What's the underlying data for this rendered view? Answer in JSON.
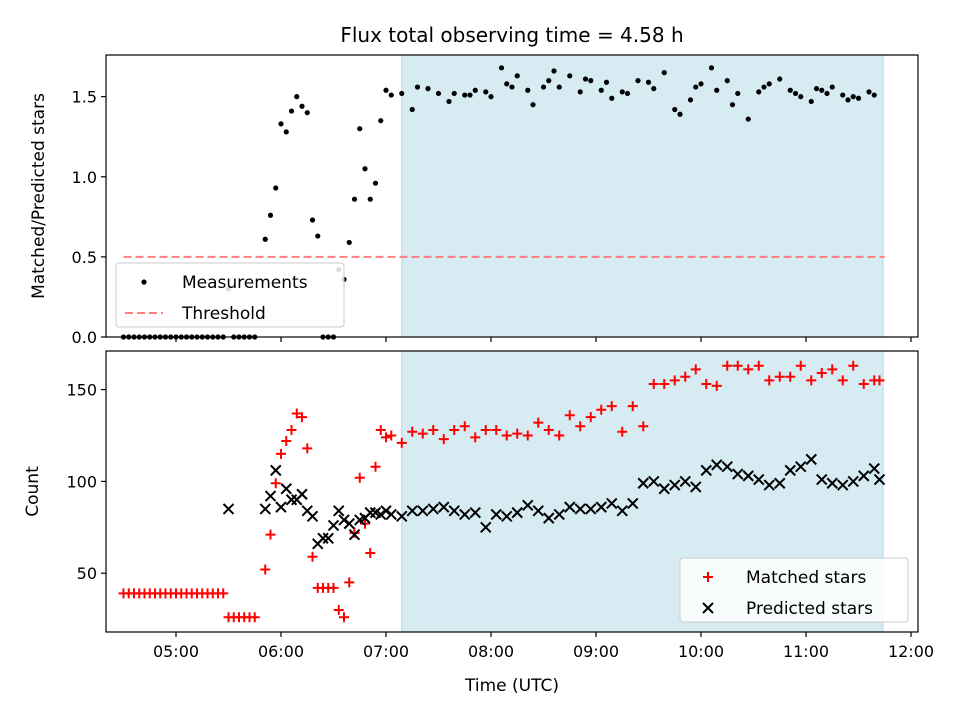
{
  "chart_data": {
    "title": "Flux total observing time = 4.58 h",
    "xlabel": "Time (UTC)",
    "x_ticks": [
      "05:00",
      "06:00",
      "07:00",
      "08:00",
      "09:00",
      "10:00",
      "11:00",
      "12:00"
    ],
    "xlim": [
      "04:20",
      "12:04"
    ],
    "shaded_span": {
      "start": "07:09",
      "end": "11:44",
      "color": "#add8e6"
    },
    "panels": [
      {
        "type": "scatter",
        "ylabel": "Matched/Predicted stars",
        "ylim": [
          0,
          1.76
        ],
        "y_ticks": [
          "0.0",
          "0.5",
          "1.0",
          "1.5"
        ],
        "legend_position": "lower-left",
        "threshold": {
          "name": "Threshold",
          "value": 0.5,
          "start": "04:30",
          "end": "11:45",
          "color": "#ff7f7f",
          "style": "dashed"
        },
        "series": [
          {
            "name": "Measurements",
            "marker": "dot",
            "color": "#000000",
            "x": [
              "04:30",
              "04:33",
              "04:36",
              "04:39",
              "04:42",
              "04:45",
              "04:48",
              "04:51",
              "04:54",
              "04:57",
              "05:00",
              "05:03",
              "05:06",
              "05:09",
              "05:12",
              "05:15",
              "05:18",
              "05:21",
              "05:24",
              "05:27",
              "05:30",
              "05:33",
              "05:36",
              "05:39",
              "05:42",
              "05:45",
              "05:51",
              "05:54",
              "05:57",
              "06:00",
              "06:03",
              "06:06",
              "06:09",
              "06:12",
              "06:15",
              "06:18",
              "06:21",
              "06:24",
              "06:27",
              "06:30",
              "06:33",
              "06:36",
              "06:39",
              "06:42",
              "06:45",
              "06:48",
              "06:51",
              "06:54",
              "06:57",
              "07:00",
              "07:03",
              "07:09",
              "07:15",
              "07:18",
              "07:24",
              "07:30",
              "07:36",
              "07:39",
              "07:45",
              "07:48",
              "07:51",
              "07:57",
              "08:00",
              "08:06",
              "08:09",
              "08:12",
              "08:15",
              "08:21",
              "08:24",
              "08:30",
              "08:33",
              "08:36",
              "08:39",
              "08:45",
              "08:51",
              "08:54",
              "08:57",
              "09:03",
              "09:06",
              "09:09",
              "09:15",
              "09:18",
              "09:24",
              "09:30",
              "09:33",
              "09:39",
              "09:45",
              "09:48",
              "09:54",
              "09:57",
              "10:00",
              "10:06",
              "10:09",
              "10:15",
              "10:18",
              "10:21",
              "10:27",
              "10:33",
              "10:36",
              "10:39",
              "10:45",
              "10:51",
              "10:54",
              "10:57",
              "11:03",
              "11:06",
              "11:09",
              "11:12",
              "11:15",
              "11:21",
              "11:24",
              "11:27",
              "11:30",
              "11:36",
              "11:39"
            ],
            "y": [
              0.0,
              0.0,
              0.0,
              0.0,
              0.0,
              0.0,
              0.0,
              0.0,
              0.0,
              0.0,
              0.0,
              0.0,
              0.0,
              0.0,
              0.0,
              0.0,
              0.0,
              0.0,
              0.0,
              0.0,
              0.3,
              0.0,
              0.0,
              0.0,
              0.0,
              0.0,
              0.61,
              0.76,
              0.93,
              1.33,
              1.28,
              1.41,
              1.5,
              1.44,
              1.4,
              0.73,
              0.63,
              0.0,
              0.0,
              0.0,
              0.42,
              0.36,
              0.59,
              0.86,
              1.3,
              1.05,
              0.86,
              0.96,
              1.35,
              1.54,
              1.51,
              1.52,
              1.42,
              1.56,
              1.55,
              1.52,
              1.47,
              1.52,
              1.51,
              1.51,
              1.54,
              1.53,
              1.5,
              1.68,
              1.58,
              1.56,
              1.63,
              1.54,
              1.45,
              1.56,
              1.6,
              1.66,
              1.56,
              1.63,
              1.53,
              1.61,
              1.6,
              1.54,
              1.59,
              1.49,
              1.53,
              1.52,
              1.6,
              1.59,
              1.55,
              1.65,
              1.42,
              1.39,
              1.48,
              1.56,
              1.58,
              1.68,
              1.54,
              1.6,
              1.45,
              1.52,
              1.36,
              1.53,
              1.56,
              1.58,
              1.61,
              1.54,
              1.52,
              1.5,
              1.47,
              1.55,
              1.54,
              1.52,
              1.56,
              1.51,
              1.48,
              1.5,
              1.49,
              1.53,
              1.51
            ]
          }
        ]
      },
      {
        "type": "scatter",
        "ylabel": "Count",
        "ylim": [
          18,
          171
        ],
        "y_ticks": [
          "50",
          "100",
          "150"
        ],
        "legend_position": "lower-right",
        "series": [
          {
            "name": "Matched stars",
            "marker": "plus",
            "color": "#ff0000",
            "x": [
              "04:30",
              "04:33",
              "04:36",
              "04:39",
              "04:42",
              "04:45",
              "04:48",
              "04:51",
              "04:54",
              "04:57",
              "05:00",
              "05:03",
              "05:06",
              "05:09",
              "05:12",
              "05:15",
              "05:18",
              "05:21",
              "05:24",
              "05:27",
              "05:30",
              "05:33",
              "05:36",
              "05:39",
              "05:42",
              "05:45",
              "05:51",
              "05:54",
              "05:57",
              "06:00",
              "06:03",
              "06:06",
              "06:09",
              "06:12",
              "06:15",
              "06:18",
              "06:21",
              "06:24",
              "06:27",
              "06:30",
              "06:33",
              "06:36",
              "06:39",
              "06:42",
              "06:45",
              "06:48",
              "06:51",
              "06:54",
              "06:57",
              "07:00",
              "07:03",
              "07:09",
              "07:15",
              "07:21",
              "07:27",
              "07:33",
              "07:39",
              "07:45",
              "07:51",
              "07:57",
              "08:03",
              "08:09",
              "08:15",
              "08:21",
              "08:27",
              "08:33",
              "08:39",
              "08:45",
              "08:51",
              "08:57",
              "09:03",
              "09:09",
              "09:15",
              "09:21",
              "09:27",
              "09:33",
              "09:39",
              "09:45",
              "09:51",
              "09:57",
              "10:03",
              "10:09",
              "10:15",
              "10:21",
              "10:27",
              "10:33",
              "10:39",
              "10:45",
              "10:51",
              "10:57",
              "11:03",
              "11:09",
              "11:15",
              "11:21",
              "11:27",
              "11:33",
              "11:39",
              "11:42"
            ],
            "y": [
              39,
              39,
              39,
              39,
              39,
              39,
              39,
              39,
              39,
              39,
              39,
              39,
              39,
              39,
              39,
              39,
              39,
              39,
              39,
              39,
              26,
              26,
              26,
              26,
              26,
              26,
              52,
              71,
              99,
              115,
              122,
              128,
              137,
              135,
              118,
              59,
              42,
              42,
              42,
              42,
              30,
              26,
              45,
              72,
              102,
              77,
              61,
              108,
              128,
              124,
              125,
              121,
              127,
              126,
              128,
              123,
              128,
              130,
              124,
              128,
              128,
              125,
              126,
              125,
              132,
              128,
              125,
              136,
              130,
              135,
              139,
              141,
              127,
              141,
              130,
              153,
              153,
              155,
              157,
              161,
              153,
              152,
              163,
              163,
              161,
              163,
              155,
              157,
              157,
              163,
              155,
              159,
              161,
              155,
              163,
              153,
              155,
              155
            ],
            "shown_x": [
              "04:30",
              "04:33",
              "04:36",
              "04:39",
              "04:42",
              "04:45",
              "04:48",
              "04:51",
              "04:54",
              "04:57",
              "05:00",
              "05:03",
              "05:06",
              "05:09",
              "05:12",
              "05:15",
              "05:18",
              "05:21",
              "05:24",
              "05:27",
              "05:30",
              "05:33",
              "05:36",
              "05:39",
              "05:42",
              "05:45"
            ]
          },
          {
            "name": "Predicted stars",
            "marker": "x",
            "color": "#000000",
            "x": [
              "05:30",
              "05:51",
              "05:54",
              "05:57",
              "06:00",
              "06:03",
              "06:06",
              "06:09",
              "06:12",
              "06:15",
              "06:18",
              "06:21",
              "06:24",
              "06:27",
              "06:30",
              "06:33",
              "06:36",
              "06:39",
              "06:42",
              "06:45",
              "06:48",
              "06:51",
              "06:54",
              "06:57",
              "07:00",
              "07:03",
              "07:09",
              "07:15",
              "07:21",
              "07:27",
              "07:33",
              "07:39",
              "07:45",
              "07:51",
              "07:57",
              "08:03",
              "08:09",
              "08:15",
              "08:21",
              "08:27",
              "08:33",
              "08:39",
              "08:45",
              "08:51",
              "08:57",
              "09:03",
              "09:09",
              "09:15",
              "09:21",
              "09:27",
              "09:33",
              "09:39",
              "09:45",
              "09:51",
              "09:57",
              "10:03",
              "10:09",
              "10:15",
              "10:21",
              "10:27",
              "10:33",
              "10:39",
              "10:45",
              "10:51",
              "10:57",
              "11:03",
              "11:09",
              "11:15",
              "11:21",
              "11:27",
              "11:33",
              "11:39",
              "11:42"
            ],
            "y": [
              85,
              85,
              92,
              106,
              86,
              96,
              90,
              90,
              93,
              84,
              81,
              66,
              69,
              69,
              76,
              84,
              79,
              77,
              71,
              79,
              80,
              83,
              83,
              82,
              84,
              82,
              81,
              84,
              84,
              85,
              86,
              84,
              82,
              83,
              75,
              82,
              81,
              83,
              87,
              84,
              80,
              82,
              86,
              85,
              85,
              86,
              88,
              84,
              88,
              99,
              100,
              96,
              98,
              100,
              97,
              106,
              109,
              108,
              104,
              103,
              101,
              98,
              99,
              106,
              108,
              112,
              101,
              99,
              98,
              100,
              103,
              107,
              101
            ]
          }
        ]
      }
    ]
  }
}
